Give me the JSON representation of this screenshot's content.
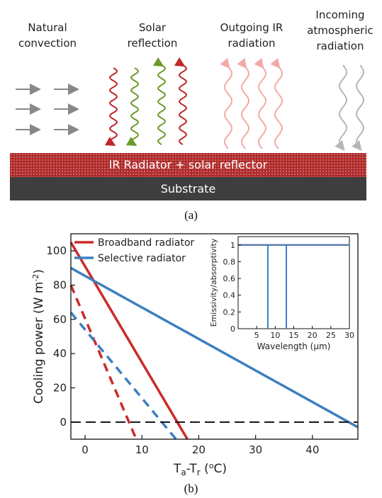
{
  "panel_a": {
    "labels": {
      "convection": "Natural convection",
      "solar": "Solar reflection",
      "outgoing": "Outgoing IR radiation",
      "incoming": "Incoming atmospheric radiation"
    },
    "radiator_layer": "IR Radiator + solar reflector",
    "substrate_layer": "Substrate",
    "colors": {
      "radiator": "#b02a2a",
      "substrate": "#3e3e3e",
      "red_wave": "#c0282c",
      "green_wave": "#6e9a2a",
      "pink_wave": "#f2aaa8",
      "grey_wave": "#b5b5b5",
      "arrow": "#888888"
    },
    "caption": "(a)"
  },
  "panel_b": {
    "caption": "(b)",
    "chart_data": [
      {
        "type": "line",
        "xlabel": "T_a-T_r (°C)",
        "ylabel": "Cooling power (W m⁻²)",
        "xlim": [
          -2.5,
          48
        ],
        "ylim": [
          -10,
          110
        ],
        "xticks": [
          0,
          10,
          20,
          30,
          40
        ],
        "yticks": [
          0,
          20,
          40,
          60,
          80,
          100
        ],
        "legend": "top-left",
        "series": [
          {
            "name": "Broadband radiator",
            "style": "solid",
            "color": "#cc2a2a",
            "x": [
              -2.5,
              18
            ],
            "y": [
              105,
              -10
            ]
          },
          {
            "name": "",
            "style": "dashed",
            "color": "#cc2a2a",
            "x": [
              -2.5,
              9
            ],
            "y": [
              80,
              -10
            ]
          },
          {
            "name": "Selective radiator",
            "style": "solid",
            "color": "#3e7fc1",
            "x": [
              -2.5,
              48
            ],
            "y": [
              90,
              -3
            ]
          },
          {
            "name": "",
            "style": "dashed",
            "color": "#3e7fc1",
            "x": [
              -2.5,
              16
            ],
            "y": [
              64,
              -10
            ]
          },
          {
            "name": "",
            "style": "dashed",
            "color": "#111111",
            "x": [
              -2.5,
              48
            ],
            "y": [
              0,
              0
            ]
          }
        ]
      },
      {
        "type": "line",
        "xlabel": "Wavelength (μm)",
        "ylabel": "Emissivity/absorptivity",
        "xlim": [
          0,
          30
        ],
        "ylim": [
          0,
          1.1
        ],
        "xticks": [
          5,
          10,
          15,
          20,
          25,
          30
        ],
        "yticks": [
          0,
          0.2,
          0.4,
          0.6,
          0.8,
          1
        ],
        "series": [
          {
            "name": "",
            "color": "#cc2a2a",
            "x": [
              0,
              30
            ],
            "y": [
              1,
              1
            ]
          },
          {
            "name": "",
            "color": "#3e7fc1",
            "x": [
              0,
              8,
              8,
              8,
              8,
              13,
              13,
              13,
              13,
              30
            ],
            "y": [
              1,
              1,
              0,
              0,
              1,
              1,
              0,
              0,
              1,
              1
            ]
          }
        ]
      }
    ]
  }
}
